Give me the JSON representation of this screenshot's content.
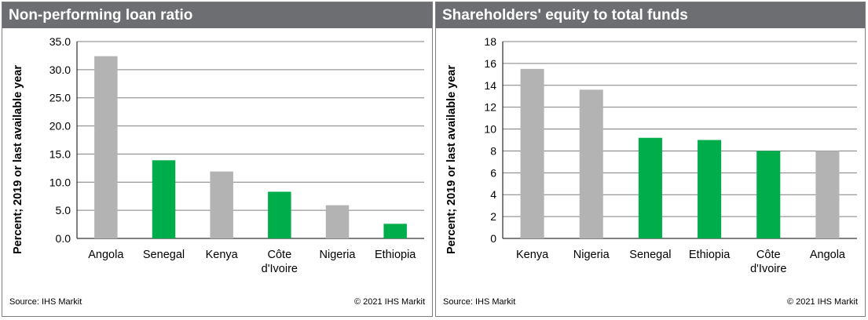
{
  "colors": {
    "grey": "#b3b3b3",
    "green": "#00ad4b",
    "header": "#6d6e71"
  },
  "chart_data": [
    {
      "type": "bar",
      "title": "Non-performing loan ratio",
      "ylabel": "Percent; 2019 or last available year",
      "categories": [
        "Angola",
        "Senegal",
        "Kenya",
        "Côte d'Ivoire",
        "Nigeria",
        "Ethiopia"
      ],
      "category_lines": [
        [
          "Angola"
        ],
        [
          "Senegal"
        ],
        [
          "Kenya"
        ],
        [
          "Côte",
          "d'Ivoire"
        ],
        [
          "Nigeria"
        ],
        [
          "Ethiopia"
        ]
      ],
      "values": [
        32.4,
        13.9,
        11.9,
        8.3,
        5.9,
        2.6
      ],
      "bar_colors": [
        "grey",
        "green",
        "grey",
        "green",
        "grey",
        "green"
      ],
      "ylim": [
        0,
        35
      ],
      "yticks": [
        "0.0",
        "5.0",
        "10.0",
        "15.0",
        "20.0",
        "25.0",
        "30.0",
        "35.0"
      ],
      "grid": true,
      "source": "Source: IHS Markit",
      "copyright": "© 2021 IHS Markit"
    },
    {
      "type": "bar",
      "title": "Shareholders' equity to total funds",
      "ylabel": "Percent; 2019 or last available year",
      "categories": [
        "Kenya",
        "Nigeria",
        "Senegal",
        "Ethiopia",
        "Côte d'Ivoire",
        "Angola"
      ],
      "category_lines": [
        [
          "Kenya"
        ],
        [
          "Nigeria"
        ],
        [
          "Senegal"
        ],
        [
          "Ethiopia"
        ],
        [
          "Côte",
          "d'Ivoire"
        ],
        [
          "Angola"
        ]
      ],
      "values": [
        15.5,
        13.6,
        9.2,
        9.0,
        8.0,
        8.0
      ],
      "bar_colors": [
        "grey",
        "grey",
        "green",
        "green",
        "green",
        "grey"
      ],
      "ylim": [
        0,
        18
      ],
      "yticks": [
        "0",
        "2",
        "4",
        "6",
        "8",
        "10",
        "12",
        "14",
        "16",
        "18"
      ],
      "grid": true,
      "source": "Source: IHS Markit",
      "copyright": "© 2021 IHS Markit"
    }
  ]
}
